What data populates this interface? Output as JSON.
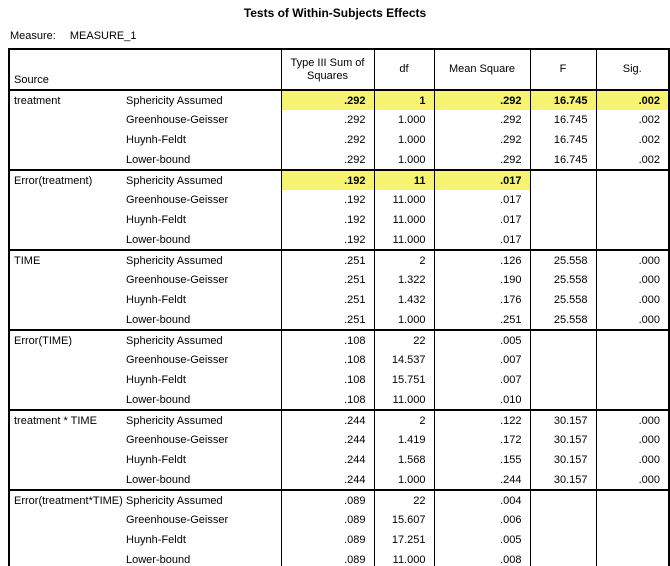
{
  "title": "Tests of Within-Subjects Effects",
  "measure": {
    "label": "Measure:",
    "value": "MEASURE_1"
  },
  "colors": {
    "highlight": "#F5F370",
    "border": "#000000",
    "background": "#FFFFFF"
  },
  "table": {
    "columns": [
      "Source",
      "Type III Sum of Squares",
      "df",
      "Mean Square",
      "F",
      "Sig."
    ],
    "groups": [
      {
        "source": "treatment",
        "rows": [
          {
            "method": "Sphericity Assumed",
            "values": [
              ".292",
              "1",
              ".292",
              "16.745",
              ".002"
            ],
            "highlighted": 5
          },
          {
            "method": "Greenhouse-Geisser",
            "values": [
              ".292",
              "1.000",
              ".292",
              "16.745",
              ".002"
            ],
            "highlighted": 0
          },
          {
            "method": "Huynh-Feldt",
            "values": [
              ".292",
              "1.000",
              ".292",
              "16.745",
              ".002"
            ],
            "highlighted": 0
          },
          {
            "method": "Lower-bound",
            "values": [
              ".292",
              "1.000",
              ".292",
              "16.745",
              ".002"
            ],
            "highlighted": 0
          }
        ]
      },
      {
        "source": "Error(treatment)",
        "rows": [
          {
            "method": "Sphericity Assumed",
            "values": [
              ".192",
              "11",
              ".017",
              "",
              ""
            ],
            "highlighted": 3
          },
          {
            "method": "Greenhouse-Geisser",
            "values": [
              ".192",
              "11.000",
              ".017",
              "",
              ""
            ],
            "highlighted": 0
          },
          {
            "method": "Huynh-Feldt",
            "values": [
              ".192",
              "11.000",
              ".017",
              "",
              ""
            ],
            "highlighted": 0
          },
          {
            "method": "Lower-bound",
            "values": [
              ".192",
              "11.000",
              ".017",
              "",
              ""
            ],
            "highlighted": 0
          }
        ]
      },
      {
        "source": "TIME",
        "rows": [
          {
            "method": "Sphericity Assumed",
            "values": [
              ".251",
              "2",
              ".126",
              "25.558",
              ".000"
            ],
            "highlighted": 0
          },
          {
            "method": "Greenhouse-Geisser",
            "values": [
              ".251",
              "1.322",
              ".190",
              "25.558",
              ".000"
            ],
            "highlighted": 0
          },
          {
            "method": "Huynh-Feldt",
            "values": [
              ".251",
              "1.432",
              ".176",
              "25.558",
              ".000"
            ],
            "highlighted": 0
          },
          {
            "method": "Lower-bound",
            "values": [
              ".251",
              "1.000",
              ".251",
              "25.558",
              ".000"
            ],
            "highlighted": 0
          }
        ]
      },
      {
        "source": "Error(TIME)",
        "rows": [
          {
            "method": "Sphericity Assumed",
            "values": [
              ".108",
              "22",
              ".005",
              "",
              ""
            ],
            "highlighted": 0
          },
          {
            "method": "Greenhouse-Geisser",
            "values": [
              ".108",
              "14.537",
              ".007",
              "",
              ""
            ],
            "highlighted": 0
          },
          {
            "method": "Huynh-Feldt",
            "values": [
              ".108",
              "15.751",
              ".007",
              "",
              ""
            ],
            "highlighted": 0
          },
          {
            "method": "Lower-bound",
            "values": [
              ".108",
              "11.000",
              ".010",
              "",
              ""
            ],
            "highlighted": 0
          }
        ]
      },
      {
        "source": "treatment * TIME",
        "rows": [
          {
            "method": "Sphericity Assumed",
            "values": [
              ".244",
              "2",
              ".122",
              "30.157",
              ".000"
            ],
            "highlighted": 0
          },
          {
            "method": "Greenhouse-Geisser",
            "values": [
              ".244",
              "1.419",
              ".172",
              "30.157",
              ".000"
            ],
            "highlighted": 0
          },
          {
            "method": "Huynh-Feldt",
            "values": [
              ".244",
              "1.568",
              ".155",
              "30.157",
              ".000"
            ],
            "highlighted": 0
          },
          {
            "method": "Lower-bound",
            "values": [
              ".244",
              "1.000",
              ".244",
              "30.157",
              ".000"
            ],
            "highlighted": 0
          }
        ]
      },
      {
        "source": "Error(treatment*TIME)",
        "rows": [
          {
            "method": "Sphericity Assumed",
            "values": [
              ".089",
              "22",
              ".004",
              "",
              ""
            ],
            "highlighted": 0
          },
          {
            "method": "Greenhouse-Geisser",
            "values": [
              ".089",
              "15.607",
              ".006",
              "",
              ""
            ],
            "highlighted": 0
          },
          {
            "method": "Huynh-Feldt",
            "values": [
              ".089",
              "17.251",
              ".005",
              "",
              ""
            ],
            "highlighted": 0
          },
          {
            "method": "Lower-bound",
            "values": [
              ".089",
              "11.000",
              ".008",
              "",
              ""
            ],
            "highlighted": 0
          }
        ]
      }
    ]
  }
}
